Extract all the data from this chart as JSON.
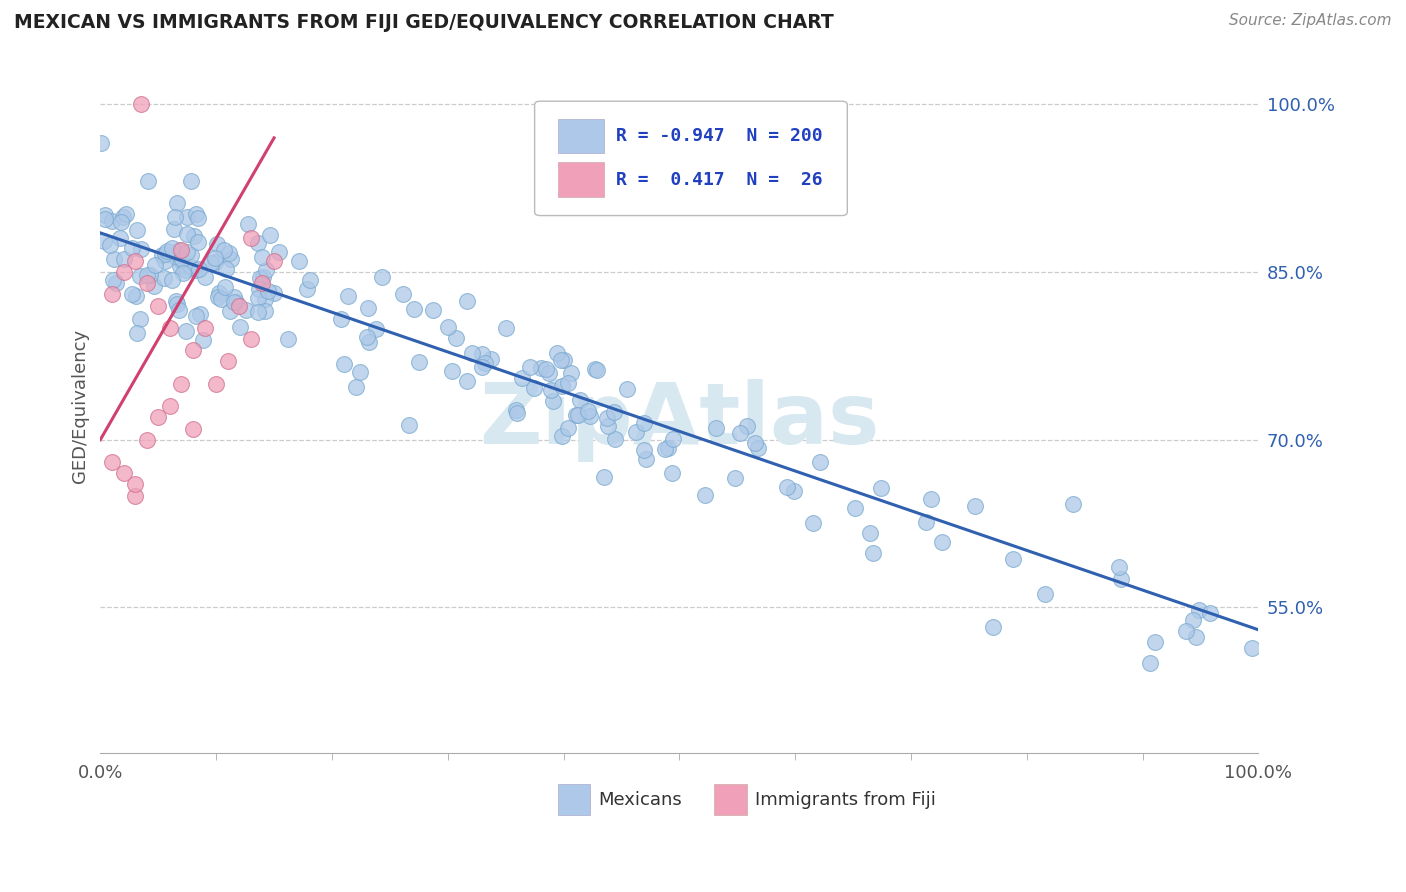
{
  "title": "MEXICAN VS IMMIGRANTS FROM FIJI GED/EQUIVALENCY CORRELATION CHART",
  "source": "Source: ZipAtlas.com",
  "ylabel": "GED/Equivalency",
  "legend_blue_r": "-0.947",
  "legend_blue_n": "200",
  "legend_pink_r": "0.417",
  "legend_pink_n": "26",
  "blue_color": "#adc8e8",
  "blue_edge_color": "#7aaad0",
  "blue_line_color": "#3060b0",
  "pink_color": "#f0a0b8",
  "pink_edge_color": "#d07090",
  "pink_line_color": "#d04070",
  "legend_text_color": "#2040c0",
  "background_color": "#ffffff",
  "grid_color": "#cccccc",
  "title_color": "#222222",
  "source_color": "#888888",
  "blue_intercept": 88.5,
  "blue_slope": -0.355,
  "pink_intercept": 70.0,
  "pink_slope": 1.8,
  "ylim_min": 42,
  "ylim_max": 104,
  "xlim_min": 0,
  "xlim_max": 100,
  "right_ytick_vals": [
    55,
    70,
    85,
    100
  ],
  "right_yticklabels": [
    "55.0%",
    "70.0%",
    "85.0%",
    "100.0%"
  ],
  "watermark_color": "#d8e8f0",
  "watermark_text": "ZipAtlas"
}
